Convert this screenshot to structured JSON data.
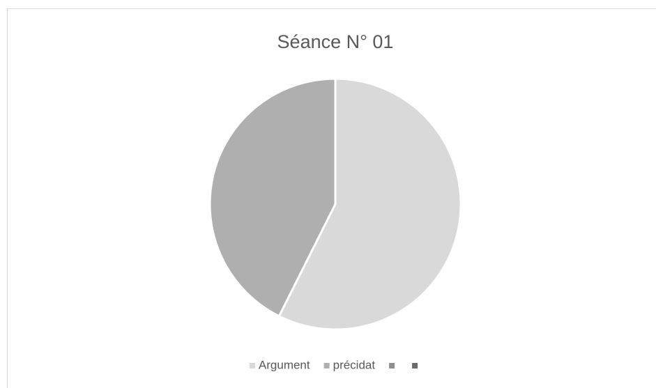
{
  "chart_data": {
    "type": "pie",
    "title": "Séance N° 01",
    "categories": [
      "Argument",
      "précidat",
      null,
      null
    ],
    "values": [
      57.4,
      42.6,
      0,
      0
    ],
    "colors": [
      "#d9d9d9",
      "#afafaf",
      "#8f8f8f",
      "#6b6b6b"
    ],
    "legend": "bottom"
  }
}
